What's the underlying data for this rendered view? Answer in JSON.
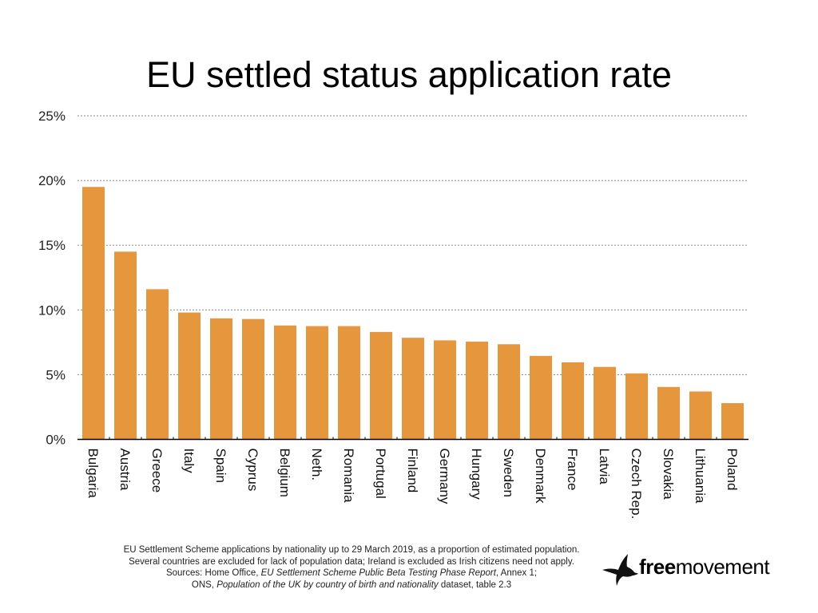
{
  "chart_data": {
    "type": "bar",
    "title": "EU settled status application rate",
    "categories": [
      "Bulgaria",
      "Austria",
      "Greece",
      "Italy",
      "Spain",
      "Cyprus",
      "Belgium",
      "Neth.",
      "Romania",
      "Portugal",
      "Finland",
      "Germany",
      "Hungary",
      "Sweden",
      "Denmark",
      "France",
      "Latvia",
      "Czech Rep.",
      "Slovakia",
      "Lithuania",
      "Poland"
    ],
    "values": [
      19.5,
      14.5,
      11.6,
      9.8,
      9.35,
      9.3,
      8.8,
      8.75,
      8.75,
      8.3,
      7.85,
      7.65,
      7.55,
      7.35,
      6.45,
      5.95,
      5.6,
      5.1,
      4.05,
      3.7,
      2.8
    ],
    "unit": "%",
    "ylim": [
      0,
      25
    ],
    "yticks": [
      0,
      5,
      10,
      15,
      20,
      25
    ],
    "ytick_labels": [
      "0%",
      "5%",
      "10%",
      "15%",
      "20%",
      "25%"
    ],
    "grid": true,
    "bar_color": "#E6963C",
    "xlabel": "",
    "ylabel": ""
  },
  "footnote": {
    "line1": "EU Settlement Scheme applications by nationality up to 29 March 2019, as a proportion of estimated population.",
    "line2": "Several countries are excluded for lack of population data; Ireland is excluded as Irish citizens need not apply.",
    "line3_prefix": "Sources: Home Office, ",
    "line3_italic": "EU Settlement Scheme Public Beta Testing Phase Report",
    "line3_suffix": ", Annex 1;",
    "line4_prefix": "ONS, ",
    "line4_italic": "Population of the UK by country of birth and nationality",
    "line4_suffix": " dataset, table 2.3"
  },
  "logo": {
    "bold": "free",
    "regular": "movement",
    "icon": "bird-icon"
  }
}
